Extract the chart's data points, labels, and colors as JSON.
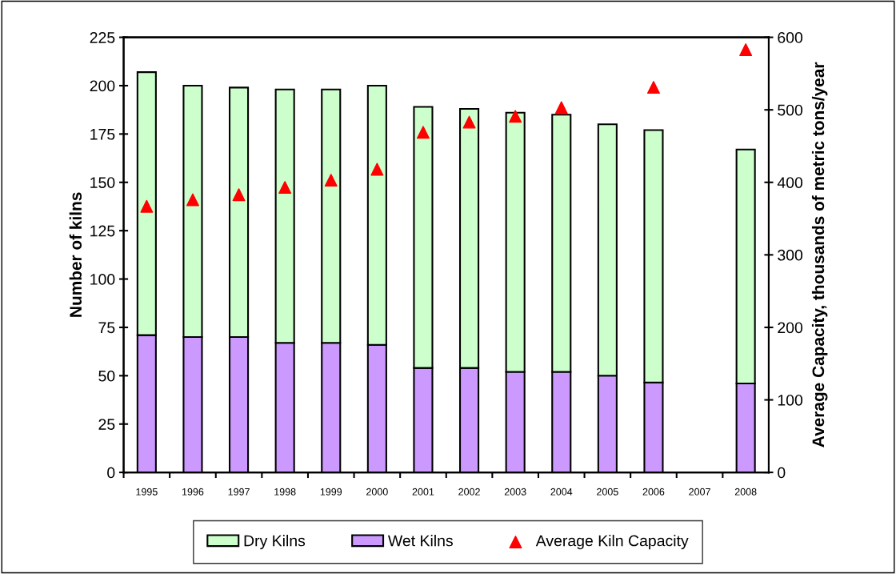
{
  "chart_data": {
    "type": "bar",
    "stacked": true,
    "categories": [
      "1995",
      "1996",
      "1997",
      "1998",
      "1999",
      "2000",
      "2001",
      "2002",
      "2003",
      "2004",
      "2005",
      "2006",
      "2007",
      "2008"
    ],
    "series": [
      {
        "name": "Wet Kilns",
        "color": "#cc99ff",
        "values": [
          71,
          70,
          70,
          67,
          67,
          66,
          54,
          54,
          52,
          52,
          50,
          46.5,
          null,
          46
        ]
      },
      {
        "name": "Dry Kilns",
        "color": "#ccffcc",
        "values": [
          136,
          130,
          129,
          131,
          131,
          134,
          135,
          134,
          134,
          133,
          130,
          130.5,
          null,
          121
        ]
      },
      {
        "name": "Average Kiln Capacity",
        "type": "scatter",
        "axis": "y2",
        "color": "#ff0000",
        "marker": "triangle",
        "values": [
          367,
          376,
          383,
          393,
          403,
          418,
          469,
          483,
          491,
          503,
          null,
          531,
          null,
          583
        ]
      }
    ],
    "ylabel": "Number of kilns",
    "y2label": "Average Capacity, thousands of metric tons/year",
    "ylim": [
      0,
      225
    ],
    "yticks": [
      0,
      25,
      50,
      75,
      100,
      125,
      150,
      175,
      200,
      225
    ],
    "y2lim": [
      0,
      600
    ],
    "y2ticks": [
      0,
      100,
      200,
      300,
      400,
      500,
      600
    ],
    "grid": false,
    "legend": "bottom"
  }
}
